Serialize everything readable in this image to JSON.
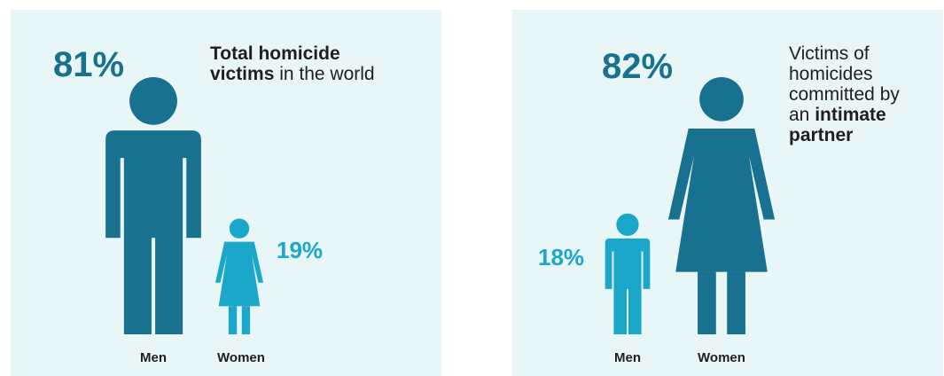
{
  "colors": {
    "men": "#17718f",
    "women": "#1ba7c9",
    "panel_bg": "#e8f6f7",
    "text": "#1f1f1f"
  },
  "chart_data": [
    {
      "type": "pictogram",
      "title": "Total homicide victims in the world",
      "title_parts": {
        "bold": "Total homicide victims",
        "rest": "in the world"
      },
      "categories": [
        "Men",
        "Women"
      ],
      "values": [
        81,
        19
      ],
      "value_labels": [
        "81%",
        "19%"
      ],
      "unit": "%"
    },
    {
      "type": "pictogram",
      "title": "Victims of homicides committed by an intimate partner",
      "title_parts": {
        "line1": "Victims of",
        "line2": "homicides",
        "line3": "committed by",
        "line4_plain": "an",
        "line4_bold": "intimate",
        "line5_bold": "partner"
      },
      "categories": [
        "Men",
        "Women"
      ],
      "values": [
        18,
        82
      ],
      "value_labels": [
        "18%",
        "82%"
      ],
      "unit": "%"
    }
  ]
}
